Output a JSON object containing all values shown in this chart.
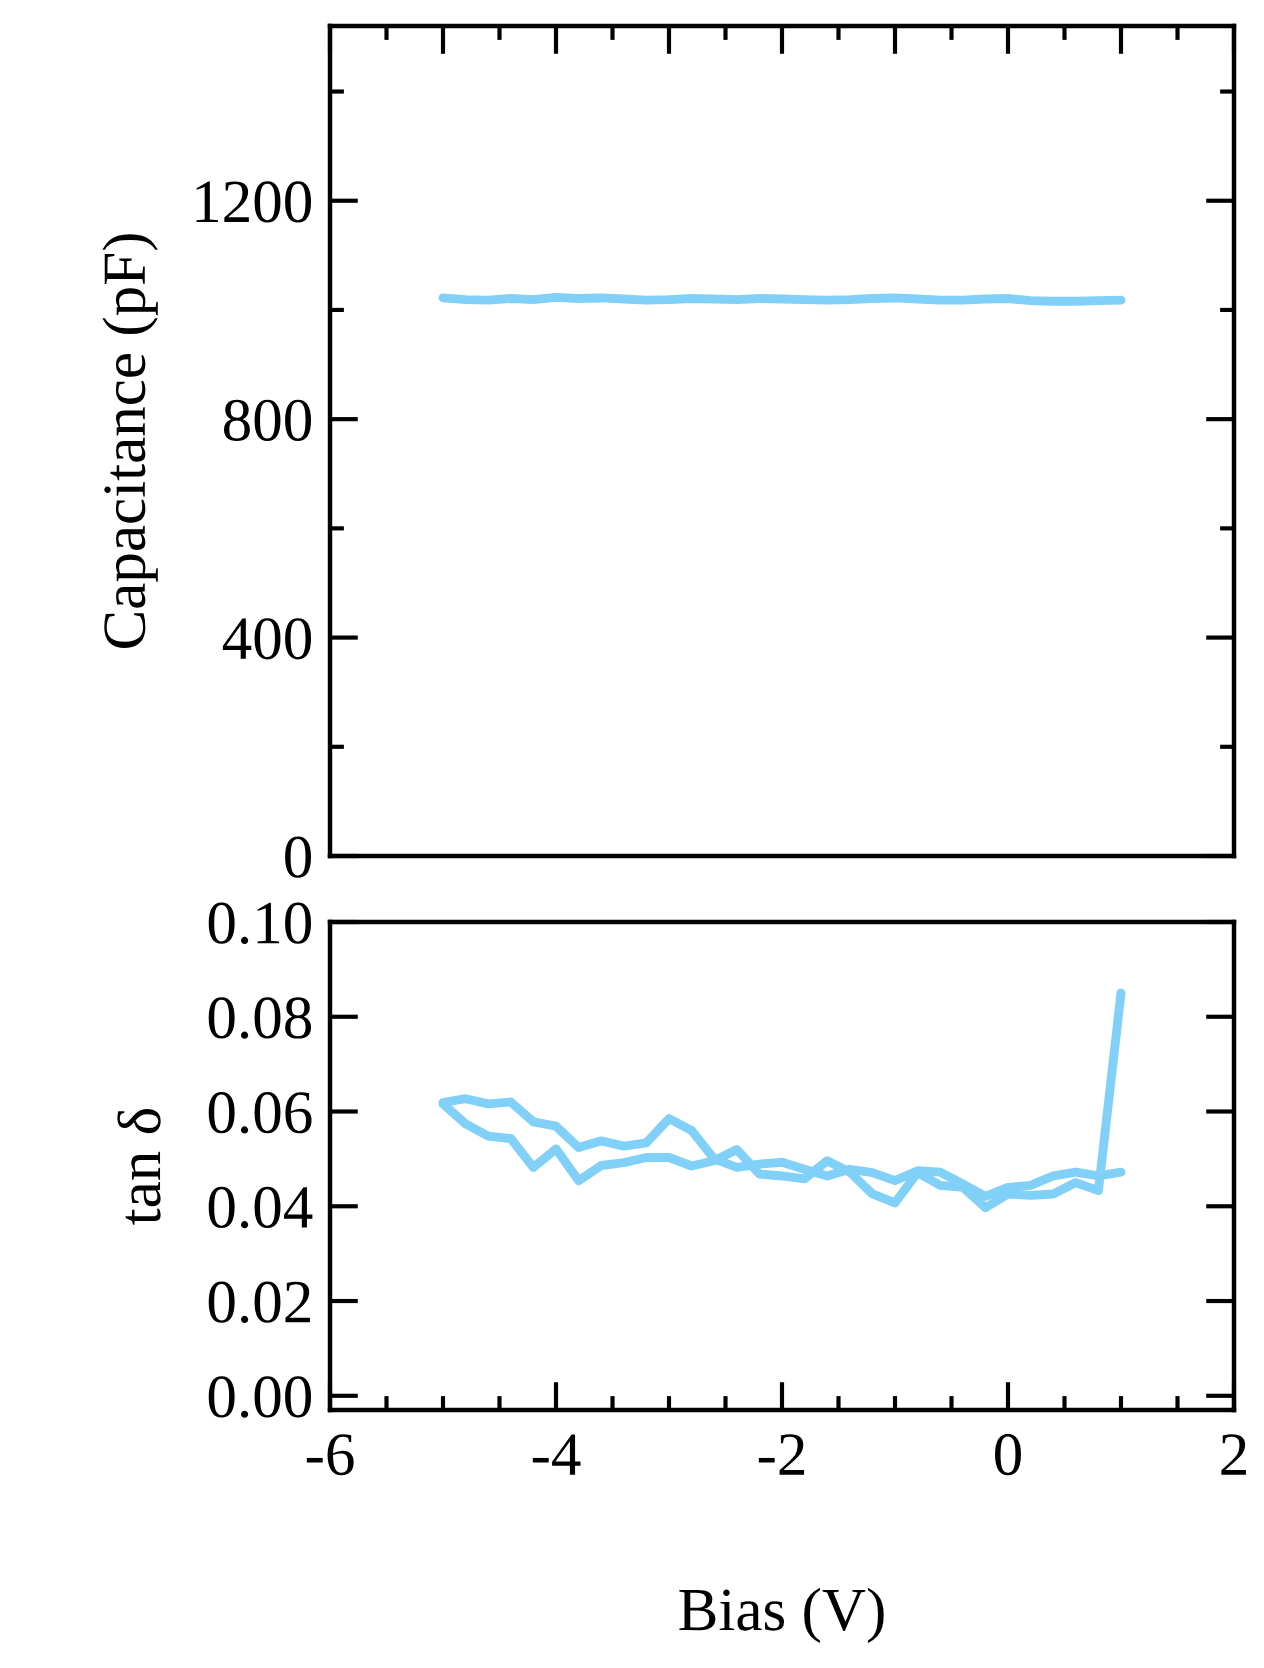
{
  "chart_data": [
    {
      "type": "line",
      "ylabel": "Capacitance (pF)",
      "xlim": [
        -6,
        2
      ],
      "ylim": [
        0,
        1520
      ],
      "tick_labels": "y",
      "grid": false,
      "legend": false,
      "line_style": "solid",
      "marker": "none",
      "xticks": [
        -6,
        {
          "value": -5.5,
          "label": null
        },
        -5,
        {
          "value": -4.5,
          "label": null
        },
        -4,
        {
          "value": -3.5,
          "label": null
        },
        -3,
        {
          "value": -2.5,
          "label": null
        },
        -2,
        {
          "value": -1.5,
          "label": null
        },
        -1,
        {
          "value": -0.5,
          "label": null
        },
        0,
        {
          "value": 0.5,
          "label": null
        },
        1,
        {
          "value": 1.5,
          "label": null
        },
        2
      ],
      "yticks": [
        0,
        {
          "value": 200,
          "label": null
        },
        400,
        {
          "value": 600,
          "label": null
        },
        800,
        {
          "value": 1000,
          "label": null
        },
        1200,
        {
          "value": 1400,
          "label": null
        }
      ],
      "x": [
        -5,
        -4.8,
        -4.6,
        -4.4,
        -4.2,
        -4,
        -3.8,
        -3.6,
        -3.4,
        -3.2,
        -3,
        -2.8,
        -2.6,
        -2.4,
        -2.2,
        -2,
        -1.8,
        -1.6,
        -1.4,
        -1.2,
        -1,
        -0.8,
        -0.6,
        -0.4,
        -0.2,
        0,
        0.2,
        0.4,
        0.6,
        0.8,
        1
      ],
      "series": [
        {
          "color": "#80d0f8",
          "values": [
            1022,
            1019,
            1018,
            1021,
            1019,
            1023,
            1021,
            1022,
            1020,
            1018,
            1019,
            1021,
            1020,
            1019,
            1021,
            1020,
            1019,
            1018,
            1019,
            1021,
            1022,
            1020,
            1018,
            1018,
            1020,
            1021,
            1017,
            1016,
            1016,
            1017,
            1018
          ]
        }
      ]
    },
    {
      "type": "line",
      "xlabel": "Bias (V)",
      "ylabel": "tan δ",
      "xlim": [
        -6,
        2
      ],
      "ylim": [
        -0.003,
        0.1
      ],
      "grid": false,
      "legend": false,
      "line_style": "solid",
      "marker": "none",
      "xticks": [
        -6,
        {
          "value": -5.5,
          "label": null
        },
        {
          "value": -5,
          "label": null
        },
        {
          "value": -4.5,
          "label": null
        },
        -4,
        {
          "value": -3.5,
          "label": null
        },
        {
          "value": -3,
          "label": null
        },
        {
          "value": -2.5,
          "label": null
        },
        -2,
        {
          "value": -1.5,
          "label": null
        },
        {
          "value": -1,
          "label": null
        },
        {
          "value": -0.5,
          "label": null
        },
        0,
        {
          "value": 0.5,
          "label": null
        },
        {
          "value": 1,
          "label": null
        },
        {
          "value": 1.5,
          "label": null
        },
        2
      ],
      "yticks": [
        {
          "value": 0,
          "label": "0.00"
        },
        {
          "value": 0.02,
          "label": "0.02"
        },
        {
          "value": 0.04,
          "label": "0.04"
        },
        {
          "value": 0.06,
          "label": "0.06"
        },
        {
          "value": 0.08,
          "label": "0.08"
        },
        {
          "value": 0.1,
          "label": "0.10"
        }
      ],
      "x": [
        -5,
        -4.8,
        -4.6,
        -4.4,
        -4.2,
        -4,
        -3.8,
        -3.6,
        -3.4,
        -3.2,
        -3,
        -2.8,
        -2.6,
        -2.4,
        -2.2,
        -2,
        -1.8,
        -1.6,
        -1.4,
        -1.2,
        -1,
        -0.8,
        -0.6,
        -0.4,
        -0.2,
        0,
        0.2,
        0.4,
        0.6,
        0.8,
        1
      ],
      "series": [
        {
          "color": "#80d0f8",
          "values": [
            0.0619,
            0.0627,
            0.0616,
            0.062,
            0.0578,
            0.0569,
            0.0524,
            0.0538,
            0.0527,
            0.0534,
            0.0585,
            0.056,
            0.05,
            0.0482,
            0.0489,
            0.0493,
            0.0478,
            0.0464,
            0.0478,
            0.0471,
            0.0454,
            0.0475,
            0.0472,
            0.0447,
            0.0421,
            0.044,
            0.0444,
            0.0464,
            0.0472,
            0.0464,
            0.0472
          ]
        },
        {
          "color": "#80d0f8",
          "values": [
            0.0616,
            0.0574,
            0.0548,
            0.0543,
            0.0482,
            0.0521,
            0.0454,
            0.0486,
            0.0492,
            0.0503,
            0.0503,
            0.0485,
            0.0496,
            0.052,
            0.0468,
            0.0464,
            0.0458,
            0.0496,
            0.0472,
            0.0426,
            0.0407,
            0.0471,
            0.0444,
            0.044,
            0.0397,
            0.0426,
            0.0423,
            0.0426,
            0.045,
            0.0433,
            0.085
          ]
        }
      ]
    }
  ]
}
